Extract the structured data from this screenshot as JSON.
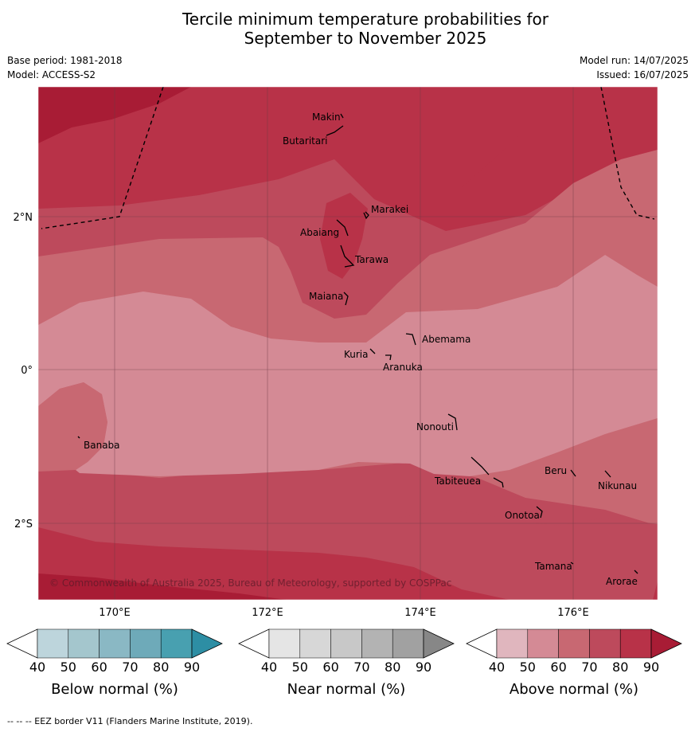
{
  "title": {
    "line1": "Tercile minimum temperature probabilities for",
    "line2": "September to November 2025"
  },
  "meta": {
    "base_period": "Base period: 1981-2018",
    "model": "Model: ACCESS-S2",
    "model_run": "Model run: 14/07/2025",
    "issued": "Issued: 16/07/2025"
  },
  "map": {
    "lat_labels": [
      "2°N",
      "0°",
      "2°S"
    ],
    "lon_labels": [
      "170°E",
      "172°E",
      "174°E",
      "176°E"
    ],
    "places": [
      "Makin",
      "Butaritari",
      "Marakei",
      "Abaiang",
      "Tarawa",
      "Maiana",
      "Abemama",
      "Kuria",
      "Aranuka",
      "Banaba",
      "Nonouti",
      "Tabiteuea",
      "Beru",
      "Nikunau",
      "Onotoa",
      "Tamana",
      "Arorae"
    ],
    "copyright": "© Commonwealth of Australia 2025, Bureau of Meteorology, supported by COSPPac",
    "colors": {
      "p40_50": "#e0b6be",
      "p50_60": "#d48a95",
      "p60_70": "#c86872",
      "p70_80": "#bd4a5c",
      "p80_90": "#b83248",
      "p90": "#a81c35"
    }
  },
  "legends": [
    {
      "title": "Below normal (%)",
      "ticks": [
        "40",
        "50",
        "60",
        "70",
        "80",
        "90"
      ],
      "colors": [
        "#bdd5dc",
        "#a4c6cd",
        "#8ab8c4",
        "#6eaab9",
        "#48a0b0",
        "#2d8ea4"
      ]
    },
    {
      "title": "Near normal (%)",
      "ticks": [
        "40",
        "50",
        "60",
        "70",
        "80",
        "90"
      ],
      "colors": [
        "#e5e5e5",
        "#d7d7d7",
        "#c8c8c8",
        "#b3b3b3",
        "#a1a1a1",
        "#878787"
      ]
    },
    {
      "title": "Above normal (%)",
      "ticks": [
        "40",
        "50",
        "60",
        "70",
        "80",
        "90"
      ],
      "colors": [
        "#e0b6be",
        "#d48a95",
        "#c86872",
        "#bd4a5c",
        "#b83248",
        "#a81c35"
      ]
    }
  ],
  "footer": "--  --  -- EEZ border V11 (Flanders Marine Institute, 2019)."
}
